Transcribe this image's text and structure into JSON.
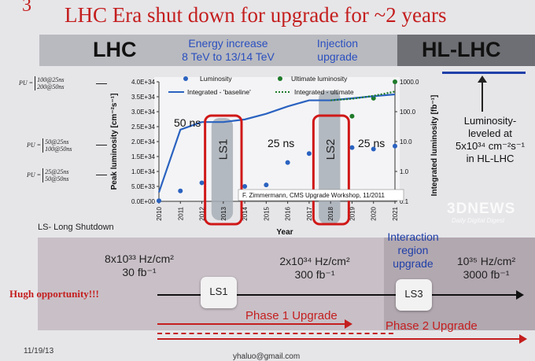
{
  "slide": {
    "number": "3",
    "title": "LHC Era shut down for upgrade for ~2 years",
    "bar_left": "LHC",
    "energy_line1": "Energy increase",
    "energy_line2": "8 TeV to 13/14 TeV",
    "injection_line1": "Injection",
    "injection_line2": "upgrade",
    "bar_right": "HL-LHC",
    "hl_line1": "Luminosity-",
    "hl_line2": "leveled at",
    "hl_line3": "5x10³⁴ cm⁻²s⁻¹",
    "hl_line4": "in HL-LHC"
  },
  "pileup": [
    {
      "label": "PU =",
      "top": "100@25ns",
      "bottom": "200@50ns"
    },
    {
      "label": "PU =",
      "top": "50@25ns",
      "bottom": "100@50ns"
    },
    {
      "label": "PU =",
      "top": "25@25ns",
      "bottom": "50@50ns"
    }
  ],
  "chart_data": {
    "type": "line",
    "xlabel": "Year",
    "ylabel": "Peak luminosity [cm⁻²s⁻¹]",
    "y2label": "Integrated luminosity [fb⁻¹]",
    "x_ticks": [
      "2010",
      "2011",
      "2012",
      "2013",
      "2014",
      "2015",
      "2016",
      "2017",
      "2018",
      "2019",
      "2020",
      "2021"
    ],
    "y_ticks": [
      "0.0E+00",
      "5.0E+33",
      "1.0E+34",
      "1.5E+34",
      "2.0E+34",
      "2.5E+34",
      "3.0E+34",
      "3.5E+34",
      "4.0E+34"
    ],
    "ylim": [
      0,
      4e+34
    ],
    "y2_ticks": [
      "1000.0",
      "100.0",
      "10.0",
      "1.0",
      "0.1"
    ],
    "y2lim": [
      0.1,
      1000
    ],
    "y2_scale": "log",
    "legend": {
      "luminosity": "Luminosity",
      "ultimate": "Ultimate luminosity",
      "baseline": "Integrated - 'baseline'",
      "integrated_ultimate": "Integrated - ultimate"
    },
    "series": [
      {
        "name": "Luminosity",
        "kind": "points",
        "color": "#2a62c0",
        "x": [
          2010,
          2011,
          2012,
          2014,
          2015,
          2016,
          2017,
          2019,
          2020,
          2021
        ],
        "y": [
          2e+32,
          3.5e+33,
          6.2e+33,
          5e+33,
          5.5e+33,
          1.3e+34,
          1.6e+34,
          1.8e+34,
          1.75e+34,
          1.85e+34
        ]
      },
      {
        "name": "Ultimate luminosity",
        "kind": "points",
        "color": "#1f7a2a",
        "x": [
          2019,
          2020,
          2021
        ],
        "y": [
          2.85e+34,
          3.45e+34,
          4e+34
        ]
      },
      {
        "name": "Integrated - 'baseline'",
        "kind": "line",
        "axis": "right",
        "color": "#2a62c0",
        "x": [
          2010,
          2011,
          2012,
          2013,
          2014,
          2015,
          2016,
          2017,
          2018,
          2019,
          2020,
          2021
        ],
        "y": [
          0.2,
          25,
          45,
          45,
          55,
          85,
          150,
          240,
          240,
          280,
          330,
          380
        ]
      },
      {
        "name": "Integrated - ultimate",
        "kind": "dotted-line",
        "axis": "right",
        "color": "#1f7a2a",
        "x": [
          2018,
          2019,
          2020,
          2021
        ],
        "y": [
          240,
          270,
          340,
          470
        ]
      }
    ],
    "annotations": {
      "ls1": "LS1",
      "ls2": "LS2",
      "ns50": "50 ns",
      "ns25a": "25 ns",
      "ns25b": "25 ns",
      "credit": "F. Zimmermann, CMS Upgrade Workshop, 11/2011"
    },
    "grid": false,
    "legend_position": "top"
  },
  "bottom": {
    "ls_note": "LS- Long Shutdown",
    "stage1_lumi": "8x10³³ Hz/cm²",
    "stage1_int": "30 fb⁻¹",
    "stage2_lumi": "2x10³⁴ Hz/cm²",
    "stage2_int": "300 fb⁻¹",
    "interaction1": "Interaction",
    "interaction2": "region",
    "interaction3": "upgrade",
    "stage3_lumi": "10³⁵ Hz/cm²",
    "stage3_int": "3000 fb⁻¹",
    "opportunity": "Hugh opportunity!!!",
    "ls1": "LS1",
    "ls3": "LS3",
    "phase1": "Phase 1 Upgrade",
    "phase2": "Phase 2 Upgrade",
    "date": "11/19/13",
    "email": "yhaluo@gmail.com"
  },
  "watermark": {
    "brand": "3DNEWS",
    "tagline": "Daily Digital Digest"
  }
}
